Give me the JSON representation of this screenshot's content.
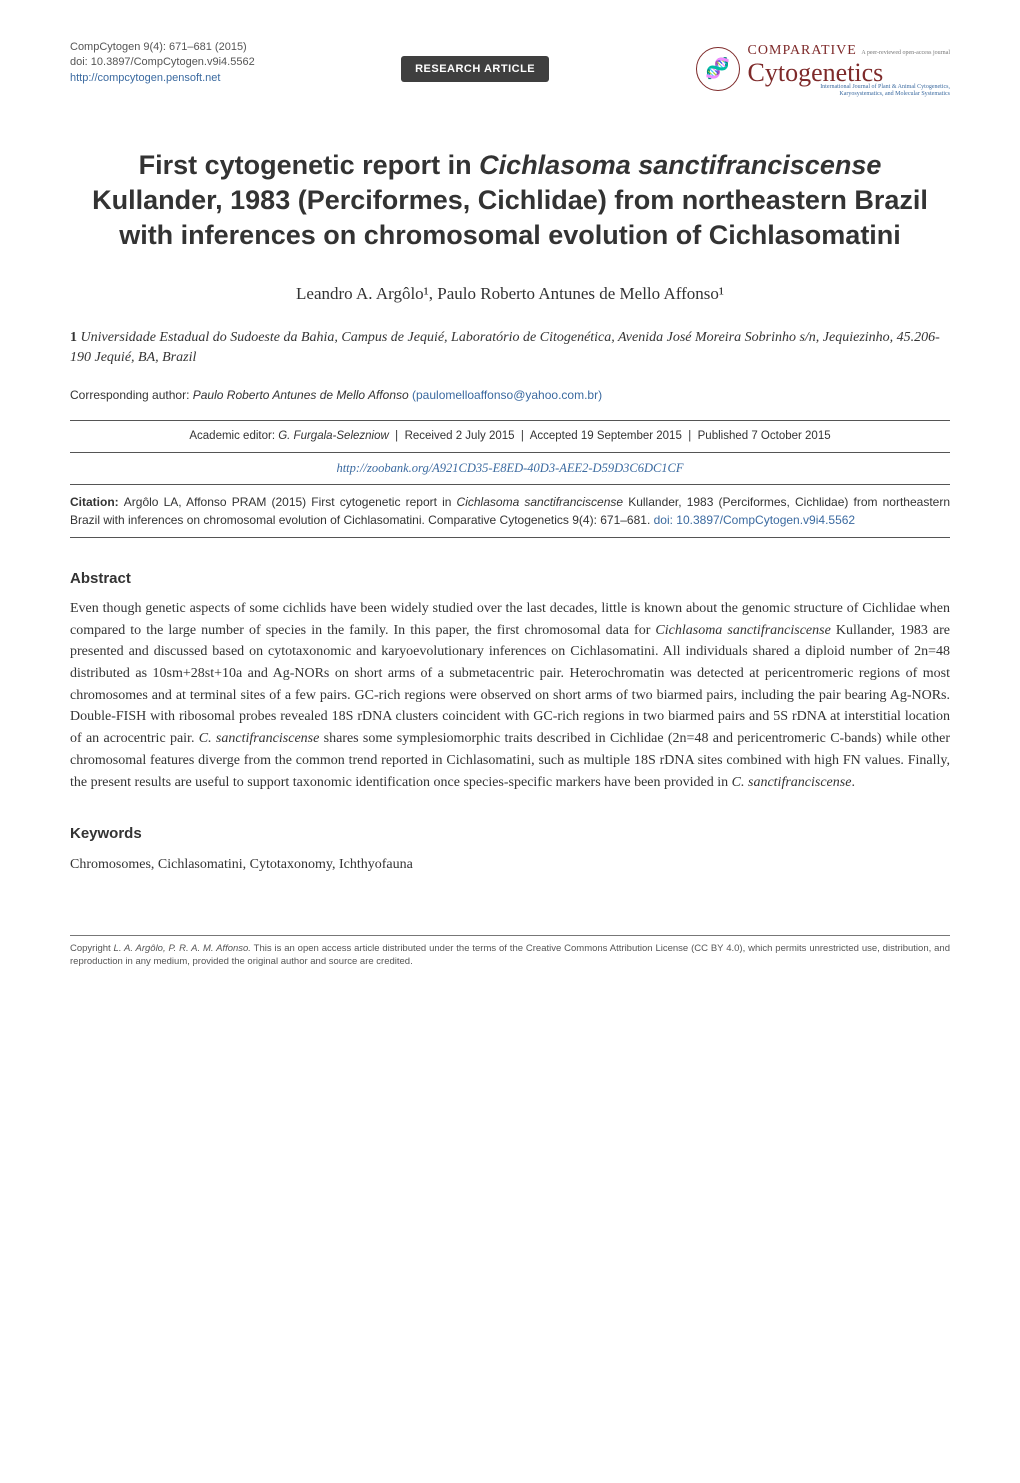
{
  "header": {
    "meta": {
      "journal_ref": "CompCytogen 9(4): 671–681 (2015)",
      "doi": "doi: 10.3897/CompCytogen.v9i4.5562",
      "url": "http://compcytogen.pensoft.net"
    },
    "badge": "RESEARCH ARTICLE",
    "journal_mk": {
      "icon_glyph": "🧬",
      "comparative": "COMPARATIVE",
      "oa": "A peer-reviewed open-access journal",
      "name": "Cytogenetics",
      "sub1": "International Journal of Plant & Animal Cytogenetics,",
      "sub2": "Karyosystematics, and Molecular Systematics"
    }
  },
  "title": {
    "l1a": "First cytogenetic report in ",
    "l1b": "Cichlasoma sanctifranciscense",
    "l2": "Kullander, 1983 (Perciformes, Cichlidae) from northeastern Brazil with inferences on chromosomal evolution of Cichlasomatini"
  },
  "authors": "Leandro A. Argôlo¹, Paulo Roberto Antunes de Mello Affonso¹",
  "affiliation": {
    "num": "1",
    "text": "Universidade Estadual do Sudoeste da Bahia, Campus de Jequié, Laboratório de Citogenética, Avenida José Moreira Sobrinho s/n, Jequiezinho, 45.206-190 Jequié, BA, Brazil"
  },
  "corresponding": {
    "label": "Corresponding author: ",
    "name": "Paulo Roberto Antunes de Mello Affonso",
    "email": "(paulomelloaffonso@yahoo.com.br)"
  },
  "history": {
    "ed_label": "Academic editor: ",
    "ed_name": "G. Furgala-Selezniow",
    "received": "Received 2 July 2015",
    "accepted": "Accepted 19 September 2015",
    "published": "Published 7 October 2015"
  },
  "zoobank": "http://zoobank.org/A921CD35-E8ED-40D3-AEE2-D59D3C6DC1CF",
  "citation": {
    "label": "Citation: ",
    "pre": "Argôlo LA, Affonso PRAM (2015) First cytogenetic report in ",
    "ital": "Cichlasoma sanctifranciscense",
    "post": " Kullander, 1983 (Perciformes, Cichlidae) from northeastern Brazil with inferences on chromosomal evolution of Cichlasomatini. Comparative Cytogenetics 9(4): 671–681. ",
    "doi": "doi: 10.3897/CompCytogen.v9i4.5562"
  },
  "abstract": {
    "heading": "Abstract",
    "p1": "Even though genetic aspects of some cichlids have been widely studied over the last decades, little is known about the genomic structure of Cichlidae when compared to the large number of species in the family. In this paper, the first chromosomal data for ",
    "i1": "Cichlasoma sanctifranciscense",
    "p2": " Kullander, 1983 are presented and discussed based on cytotaxonomic and karyoevolutionary inferences on Cichlasomatini. All individuals shared a diploid number of 2n=48 distributed as 10sm+28st+10a and Ag-NORs on short arms of a submetacentric pair. Heterochromatin was detected at pericentromeric regions of most chromosomes and at terminal sites of a few pairs. GC-rich regions were observed on short arms of two biarmed pairs, including the pair bearing Ag-NORs. Double-FISH with ribosomal probes revealed 18S rDNA clusters coincident with GC-rich regions in two biarmed pairs and 5S rDNA at interstitial location of an acrocentric pair. ",
    "i2": "C. sanctifranciscense",
    "p3": " shares some symplesiomorphic traits described in Cichlidae (2n=48 and pericentromeric C-bands) while other chromosomal features diverge from the common trend reported in Cichlasomatini, such as multiple 18S rDNA sites combined with high FN values. Finally, the present results are useful to support taxonomic identification once species-specific markers have been provided in ",
    "i3": "C. sanctifranciscense",
    "p4": "."
  },
  "keywords": {
    "heading": "Keywords",
    "text": "Chromosomes, Cichlasomatini, Cytotaxonomy, Ichthyofauna"
  },
  "footer": {
    "cpr": "Copyright ",
    "auth": "L. A. Argôlo, P. R. A. M. Affonso.",
    "rest": " This is an open access article distributed under the terms of the Creative Commons Attribution License (CC BY 4.0), which permits unrestricted use, distribution, and reproduction in any medium, provided the original author and source are credited."
  }
}
